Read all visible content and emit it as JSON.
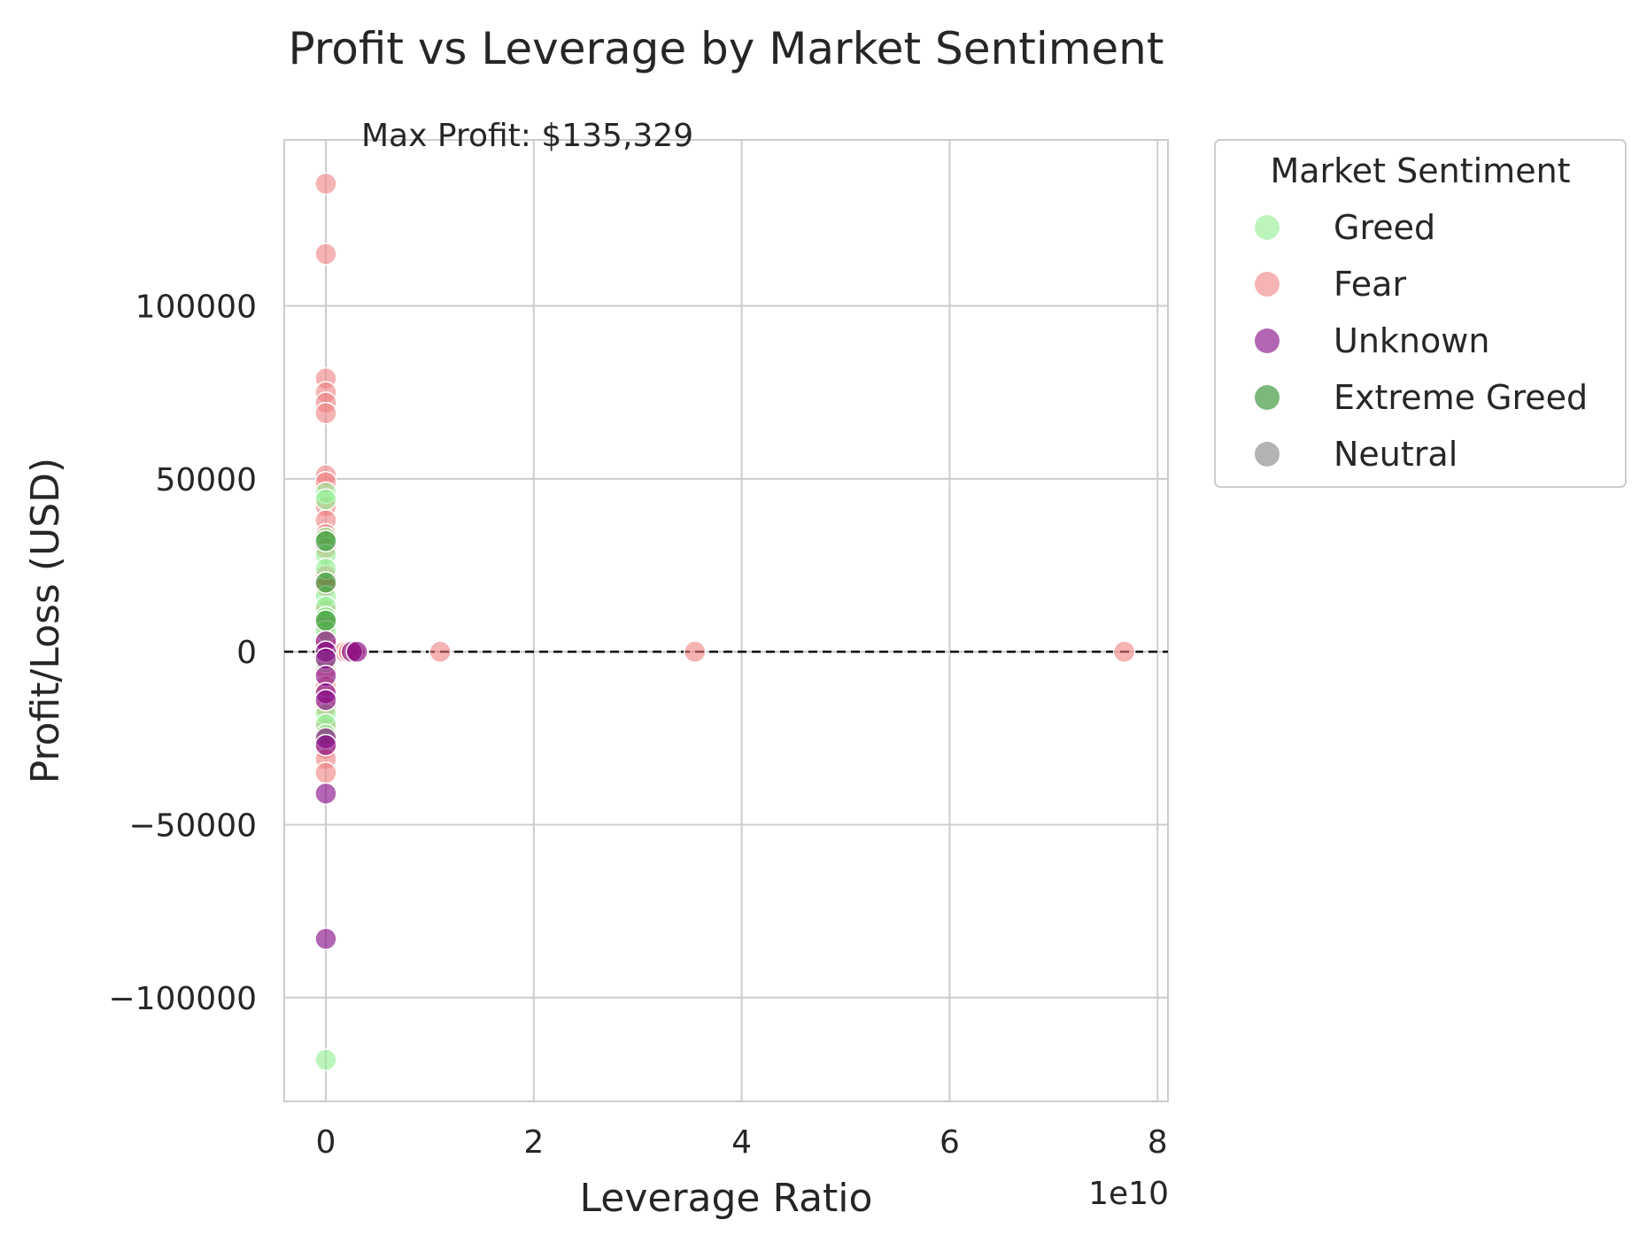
{
  "chart_data": {
    "type": "scatter",
    "title": "Profit vs Leverage by Market Sentiment",
    "xlabel": "Leverage Ratio",
    "ylabel": "Profit/Loss (USD)",
    "x_offset_label": "1e10",
    "xlim": [
      -0.4,
      8.1
    ],
    "ylim": [
      -130000,
      148000
    ],
    "xticks": [
      0,
      2,
      4,
      6,
      8
    ],
    "xtick_labels": [
      "0",
      "2",
      "4",
      "6",
      "8"
    ],
    "yticks": [
      100000,
      50000,
      0,
      -50000,
      -100000
    ],
    "ytick_labels": [
      "100000",
      "50000",
      "0",
      "−50000",
      "−100000"
    ],
    "grid": true,
    "reference_line": {
      "y": 0,
      "style": "dashed",
      "color": "#000000"
    },
    "annotation": {
      "text": "Max Profit: $135,329",
      "x": 0.35,
      "y": 144000
    },
    "legend": {
      "title": "Market Sentiment",
      "placement": "outside-right-top",
      "entries": [
        "Greed",
        "Fear",
        "Unknown",
        "Extreme Greed",
        "Neutral"
      ]
    },
    "series": [
      {
        "name": "Fear",
        "color": "#f08080",
        "points": [
          {
            "x": 0,
            "y": 135329
          },
          {
            "x": 0,
            "y": 115000
          },
          {
            "x": 0,
            "y": 79000
          },
          {
            "x": 0,
            "y": 75000
          },
          {
            "x": 0,
            "y": 72000
          },
          {
            "x": 0,
            "y": 69000
          },
          {
            "x": 0,
            "y": 51000
          },
          {
            "x": 0,
            "y": 49000
          },
          {
            "x": 0,
            "y": 42000
          },
          {
            "x": 0,
            "y": 38000
          },
          {
            "x": 0,
            "y": 34000
          },
          {
            "x": 0,
            "y": 30000
          },
          {
            "x": 0,
            "y": 22000
          },
          {
            "x": 0,
            "y": 19000
          },
          {
            "x": 0,
            "y": 12000
          },
          {
            "x": 0,
            "y": 8000
          },
          {
            "x": 0,
            "y": 3000
          },
          {
            "x": 0,
            "y": -5000
          },
          {
            "x": 0,
            "y": -10000
          },
          {
            "x": 0,
            "y": -16000
          },
          {
            "x": 0,
            "y": -22000
          },
          {
            "x": 0,
            "y": -28000
          },
          {
            "x": 0,
            "y": -31000
          },
          {
            "x": 0,
            "y": -35000
          },
          {
            "x": 0.18,
            "y": 0
          },
          {
            "x": 0.22,
            "y": 0
          },
          {
            "x": 0.28,
            "y": 0
          },
          {
            "x": 1.1,
            "y": 0
          },
          {
            "x": 3.55,
            "y": 0
          },
          {
            "x": 7.68,
            "y": 0
          }
        ]
      },
      {
        "name": "Greed",
        "color": "#90ee90",
        "points": [
          {
            "x": 0,
            "y": 46000
          },
          {
            "x": 0,
            "y": 44000
          },
          {
            "x": 0,
            "y": 33000
          },
          {
            "x": 0,
            "y": 28000
          },
          {
            "x": 0,
            "y": 24000
          },
          {
            "x": 0,
            "y": 16000
          },
          {
            "x": 0,
            "y": 13000
          },
          {
            "x": 0,
            "y": 10000
          },
          {
            "x": 0,
            "y": 6000
          },
          {
            "x": 0,
            "y": -3000
          },
          {
            "x": 0,
            "y": -18000
          },
          {
            "x": 0,
            "y": -21000
          },
          {
            "x": 0,
            "y": -24000
          },
          {
            "x": 0,
            "y": -118000
          }
        ]
      },
      {
        "name": "Extreme Greed",
        "color": "#228b22",
        "points": [
          {
            "x": 0,
            "y": 32000
          },
          {
            "x": 0,
            "y": 20000
          },
          {
            "x": 0,
            "y": 9000
          }
        ]
      },
      {
        "name": "Unknown",
        "color": "#800080",
        "points": [
          {
            "x": 0,
            "y": 3000
          },
          {
            "x": 0,
            "y": 0
          },
          {
            "x": 0,
            "y": -2000
          },
          {
            "x": 0,
            "y": -7000
          },
          {
            "x": 0,
            "y": -12000
          },
          {
            "x": 0,
            "y": -14000
          },
          {
            "x": 0,
            "y": -25000
          },
          {
            "x": 0,
            "y": -27000
          },
          {
            "x": 0,
            "y": -41000
          },
          {
            "x": 0,
            "y": -83000
          },
          {
            "x": 0.25,
            "y": 0
          },
          {
            "x": 0.3,
            "y": 0
          }
        ]
      },
      {
        "name": "Neutral",
        "color": "#808080",
        "points": []
      }
    ]
  }
}
